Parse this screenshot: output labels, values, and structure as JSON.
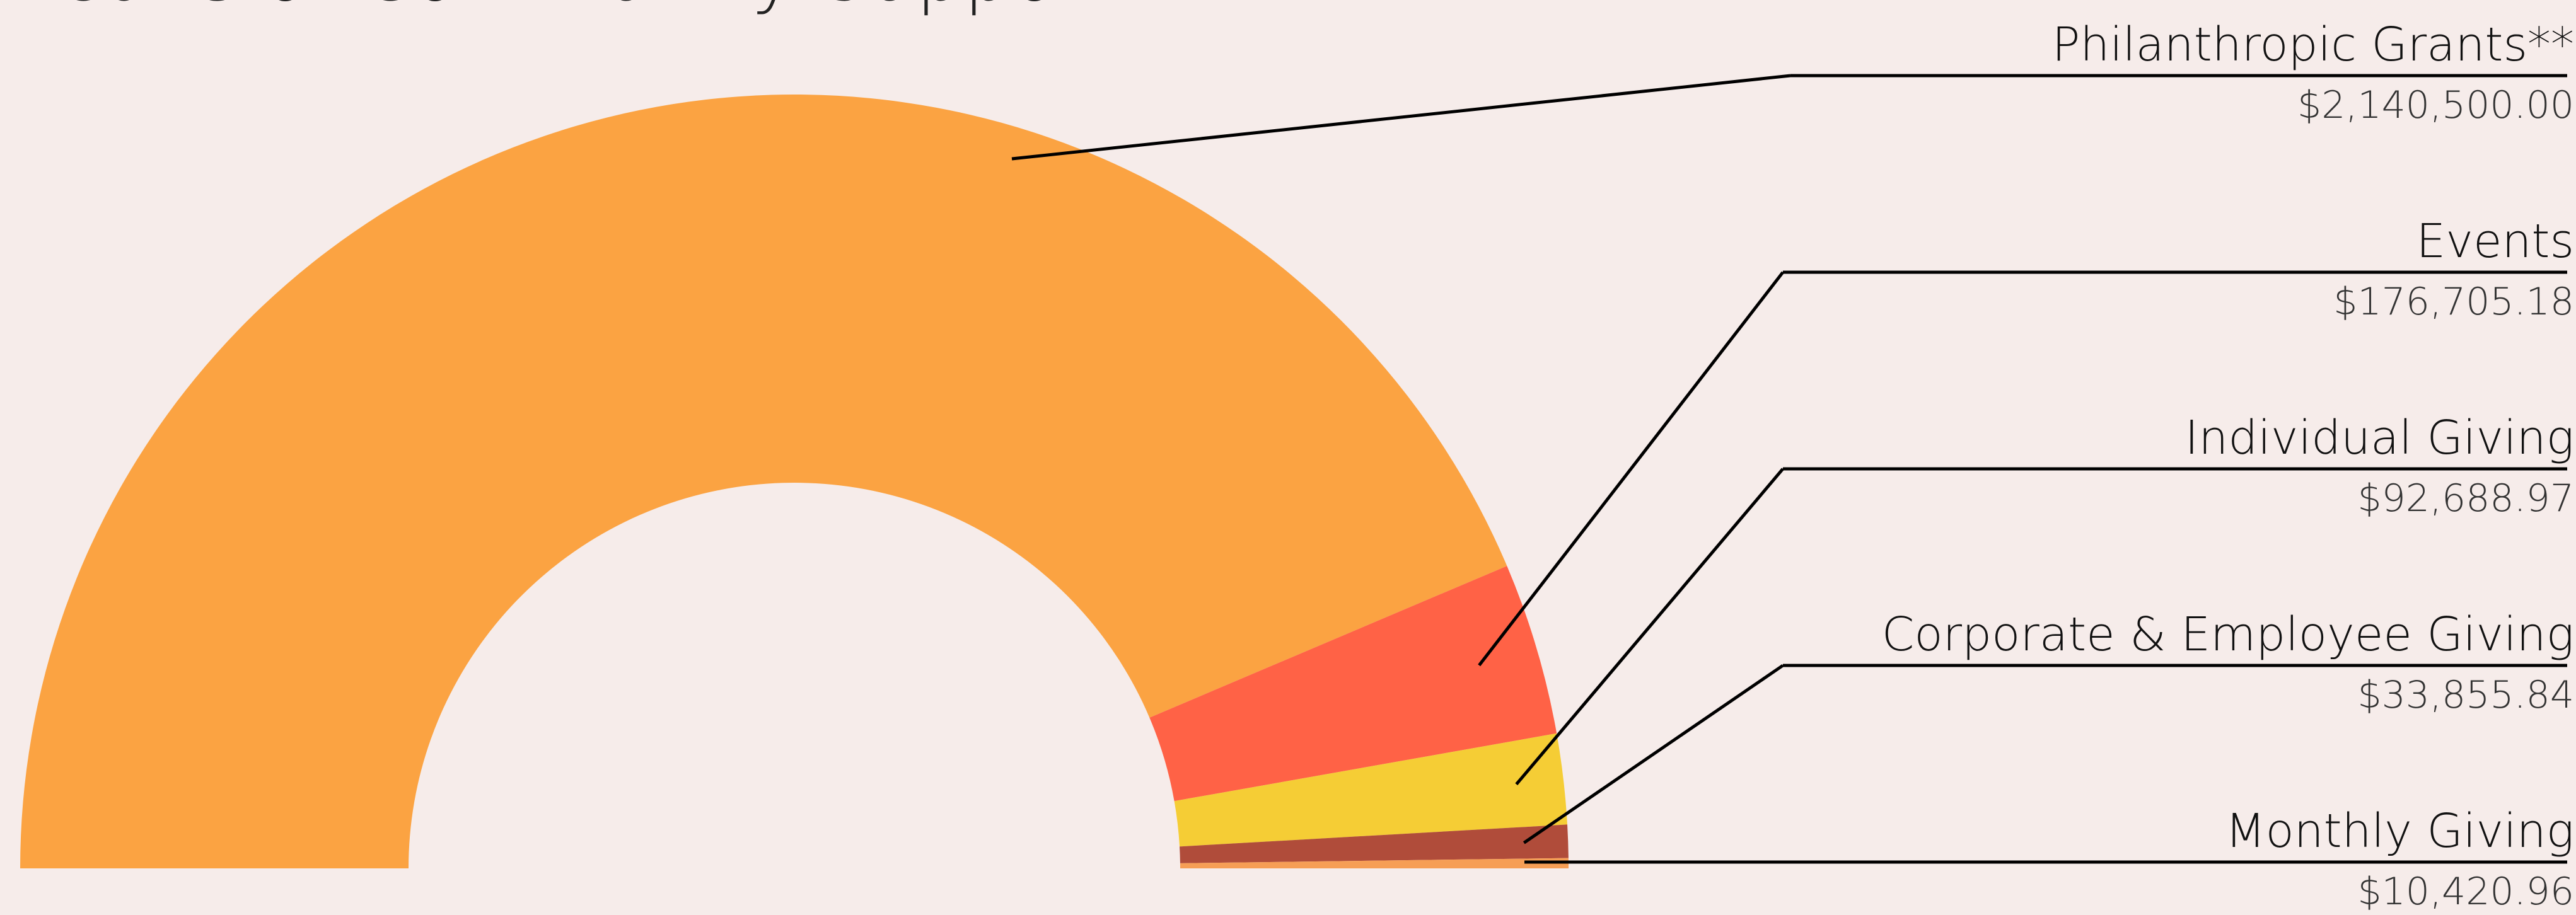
{
  "chart_data": {
    "type": "pie",
    "variant": "half-donut",
    "title": "Means of Community Support",
    "legend_position": "right",
    "slices": [
      {
        "label": "Philanthropic Grants**",
        "value_text": "$2,140,500.00",
        "value": 2140500.0,
        "color": "#fba342"
      },
      {
        "label": "Events",
        "value_text": "$176,705.18",
        "value": 176705.18,
        "color": "#ff6246"
      },
      {
        "label": "Individual Giving",
        "value_text": "$92,688.97",
        "value": 92688.97,
        "color": "#f5cd35"
      },
      {
        "label": "Corporate & Employee Giving",
        "value_text": "$33,855.84",
        "value": 33855.84,
        "color": "#b04c3a"
      },
      {
        "label": "Monthly Giving",
        "value_text": "$10,420.96",
        "value": 10420.96,
        "color": "#f69e55"
      }
    ]
  }
}
